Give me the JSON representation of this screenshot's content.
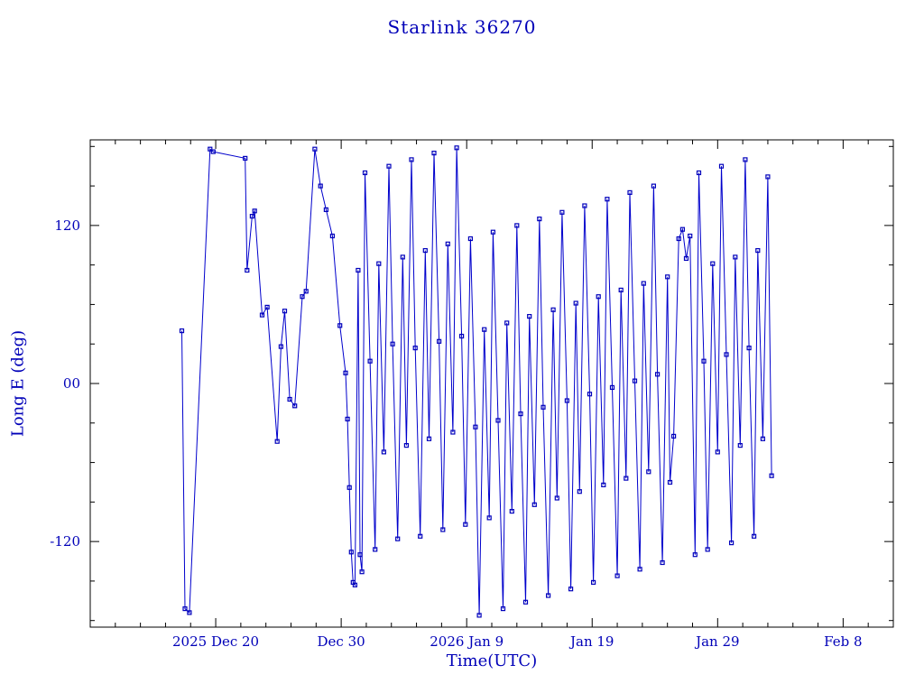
{
  "figure": {
    "title": "Starlink 36270",
    "xlabel": "Time(UTC)",
    "ylabel": "Long E (deg)"
  },
  "chart_data": {
    "type": "line",
    "title": "Starlink 36270",
    "xlabel": "Time(UTC)",
    "ylabel": "Long E (deg)",
    "x_epoch": "days since 2025 Dec 10 UTC",
    "xlim": [
      0,
      64
    ],
    "ylim": [
      -185,
      185
    ],
    "x_ticks": [
      10,
      20,
      30,
      40,
      50,
      60
    ],
    "x_tick_labels": [
      "2025 Dec 20",
      "Dec 30",
      "2026 Jan 9",
      "Jan 19",
      "Jan 29",
      "Feb 8"
    ],
    "x_minor_step": 2,
    "y_ticks": [
      -120,
      0,
      120
    ],
    "y_tick_labels": [
      "-120",
      "00",
      "120"
    ],
    "y_minor_step": 30,
    "grid": false,
    "legend": null,
    "marker": "square",
    "colors": {
      "line": "#0000cc",
      "marker": "#0000bb",
      "frame": "#000000",
      "text": "#0000b8",
      "background": "#ffffff"
    },
    "series": [
      {
        "name": "Long E",
        "x": [
          7.3,
          7.55,
          7.9,
          9.55,
          9.8,
          12.35,
          12.5,
          12.9,
          13.1,
          13.7,
          14.1,
          14.9,
          15.2,
          15.5,
          15.9,
          16.3,
          16.9,
          17.2,
          17.9,
          18.35,
          18.8,
          19.3,
          19.9,
          20.35,
          20.5,
          20.65,
          20.8,
          20.95,
          21.1,
          21.35,
          21.5,
          21.65,
          21.9,
          22.3,
          22.7,
          23.0,
          23.4,
          23.8,
          24.1,
          24.5,
          24.9,
          25.2,
          25.6,
          25.9,
          26.3,
          26.7,
          27.0,
          27.4,
          27.8,
          28.1,
          28.5,
          28.9,
          29.2,
          29.6,
          29.9,
          30.3,
          30.7,
          31.0,
          31.4,
          31.8,
          32.1,
          32.5,
          32.9,
          33.2,
          33.6,
          34.0,
          34.3,
          34.7,
          35.0,
          35.4,
          35.8,
          36.1,
          36.5,
          36.9,
          37.2,
          37.6,
          38.0,
          38.3,
          38.7,
          39.0,
          39.4,
          39.8,
          40.1,
          40.5,
          40.9,
          41.2,
          41.6,
          42.0,
          42.3,
          42.7,
          43.0,
          43.4,
          43.8,
          44.1,
          44.5,
          44.9,
          45.2,
          45.6,
          46.0,
          46.2,
          46.5,
          46.9,
          47.2,
          47.5,
          47.8,
          48.2,
          48.5,
          48.9,
          49.2,
          49.6,
          50.0,
          50.3,
          50.7,
          51.1,
          51.4,
          51.8,
          52.2,
          52.5,
          52.9,
          53.2,
          53.6,
          54.0,
          54.3
        ],
        "y": [
          40,
          -171,
          -174,
          178,
          176,
          171,
          86,
          127,
          131,
          52,
          58,
          -44,
          28,
          55,
          -12,
          -17,
          66,
          70,
          178,
          150,
          132,
          112,
          44,
          8,
          -27,
          -79,
          -128,
          -151,
          -153,
          86,
          -130,
          -143,
          160,
          17,
          -126,
          91,
          -52,
          165,
          30,
          -118,
          96,
          -47,
          170,
          27,
          -116,
          101,
          -42,
          175,
          32,
          -111,
          106,
          -37,
          179,
          36,
          -107,
          110,
          -33,
          -176,
          41,
          -102,
          115,
          -28,
          -171,
          46,
          -97,
          120,
          -23,
          -166,
          51,
          -92,
          125,
          -18,
          -161,
          56,
          -87,
          130,
          -13,
          -156,
          61,
          -82,
          135,
          -8,
          -151,
          66,
          -77,
          140,
          -3,
          -146,
          71,
          -72,
          145,
          2,
          -141,
          76,
          -67,
          150,
          7,
          -136,
          81,
          -75,
          -40,
          110,
          117,
          95,
          112,
          -130,
          160,
          17,
          -126,
          91,
          -52,
          165,
          22,
          -121,
          96,
          -47,
          170,
          27,
          -116,
          101,
          -42,
          157,
          -70
        ]
      }
    ]
  }
}
